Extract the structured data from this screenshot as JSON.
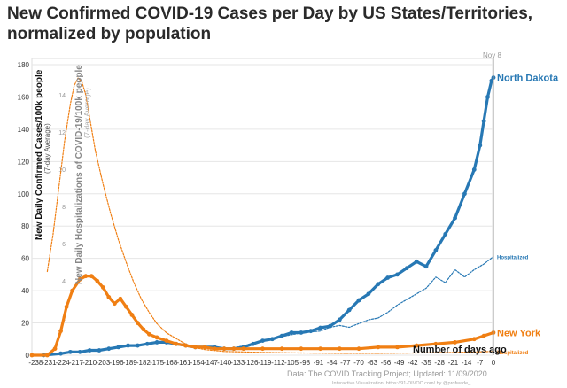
{
  "chart_data": {
    "type": "line",
    "title": "New Confirmed COVID-19 Cases per Day by US States/Territories, normalized by population",
    "ylabel": "New Daily Confirmed Cases/100k people",
    "ylabel_sub": "(7-day Average)",
    "y2label": "New Daily Hospitalizations of COVID-19/100k people",
    "y2label_sub": "(7-day Average)",
    "xlabel": "Number of days ago",
    "date_marker": "Nov 8",
    "source": "Data: The COVID Tracking Project; Updated: 11/09/2020",
    "credit": "Interactive Visualization: https://91-DIVOC.com/ by @profwade_",
    "xlim": [
      -240,
      0
    ],
    "ylim": [
      0,
      180
    ],
    "y2lim": [
      0,
      15
    ],
    "x_ticks": [
      -238,
      -231,
      -224,
      -217,
      -210,
      -203,
      -196,
      -189,
      -182,
      -175,
      -168,
      -161,
      -154,
      -147,
      -140,
      -133,
      -126,
      -119,
      -112,
      -105,
      -98,
      -91,
      -84,
      -77,
      -70,
      -63,
      -56,
      -49,
      -42,
      -35,
      -28,
      -21,
      -14,
      -7,
      0
    ],
    "y_ticks": [
      0,
      20,
      40,
      60,
      80,
      100,
      120,
      140,
      160,
      180
    ],
    "y2_ticks": [
      0,
      2,
      4,
      6,
      8,
      10,
      12,
      14
    ],
    "series": [
      {
        "name": "North Dakota",
        "metric": "cases",
        "color": "#2778b4",
        "points": [
          [
            -234,
            0
          ],
          [
            -225,
            1
          ],
          [
            -220,
            2
          ],
          [
            -215,
            2
          ],
          [
            -210,
            3
          ],
          [
            -205,
            3
          ],
          [
            -200,
            4
          ],
          [
            -195,
            5
          ],
          [
            -190,
            6
          ],
          [
            -185,
            6
          ],
          [
            -180,
            7
          ],
          [
            -175,
            8
          ],
          [
            -170,
            8
          ],
          [
            -165,
            7
          ],
          [
            -160,
            6
          ],
          [
            -155,
            5
          ],
          [
            -150,
            5
          ],
          [
            -145,
            5
          ],
          [
            -140,
            4
          ],
          [
            -135,
            4
          ],
          [
            -130,
            5
          ],
          [
            -125,
            7
          ],
          [
            -120,
            9
          ],
          [
            -115,
            10
          ],
          [
            -110,
            12
          ],
          [
            -105,
            14
          ],
          [
            -100,
            14
          ],
          [
            -95,
            15
          ],
          [
            -90,
            17
          ],
          [
            -85,
            18
          ],
          [
            -80,
            22
          ],
          [
            -75,
            28
          ],
          [
            -70,
            34
          ],
          [
            -65,
            38
          ],
          [
            -60,
            44
          ],
          [
            -55,
            48
          ],
          [
            -50,
            50
          ],
          [
            -45,
            54
          ],
          [
            -40,
            58
          ],
          [
            -35,
            55
          ],
          [
            -30,
            65
          ],
          [
            -25,
            75
          ],
          [
            -20,
            85
          ],
          [
            -15,
            100
          ],
          [
            -10,
            115
          ],
          [
            -7,
            130
          ],
          [
            -5,
            145
          ],
          [
            -3,
            160
          ],
          [
            -1,
            170
          ],
          [
            0,
            172
          ]
        ]
      },
      {
        "name": "Hospitalized",
        "metric": "hospitalizations",
        "color": "#2778b4",
        "points": [
          [
            -140,
            0.3
          ],
          [
            -130,
            0.5
          ],
          [
            -120,
            0.8
          ],
          [
            -110,
            1.0
          ],
          [
            -100,
            1.2
          ],
          [
            -90,
            1.3
          ],
          [
            -85,
            1.5
          ],
          [
            -80,
            1.6
          ],
          [
            -75,
            1.5
          ],
          [
            -70,
            1.7
          ],
          [
            -65,
            1.9
          ],
          [
            -60,
            2.0
          ],
          [
            -55,
            2.3
          ],
          [
            -50,
            2.7
          ],
          [
            -45,
            3.0
          ],
          [
            -40,
            3.3
          ],
          [
            -35,
            3.6
          ],
          [
            -30,
            4.2
          ],
          [
            -25,
            3.9
          ],
          [
            -20,
            4.6
          ],
          [
            -15,
            4.2
          ],
          [
            -10,
            4.6
          ],
          [
            -5,
            4.9
          ],
          [
            0,
            5.3
          ]
        ]
      },
      {
        "name": "New York",
        "metric": "cases",
        "color": "#f07f13",
        "points": [
          [
            -240,
            0
          ],
          [
            -232,
            0
          ],
          [
            -228,
            4
          ],
          [
            -225,
            15
          ],
          [
            -222,
            30
          ],
          [
            -219,
            40
          ],
          [
            -215,
            47
          ],
          [
            -212,
            49
          ],
          [
            -209,
            49
          ],
          [
            -206,
            46
          ],
          [
            -203,
            42
          ],
          [
            -200,
            36
          ],
          [
            -197,
            32
          ],
          [
            -194,
            35
          ],
          [
            -191,
            30
          ],
          [
            -188,
            25
          ],
          [
            -185,
            20
          ],
          [
            -182,
            16
          ],
          [
            -179,
            13
          ],
          [
            -175,
            11
          ],
          [
            -170,
            9
          ],
          [
            -165,
            7
          ],
          [
            -160,
            6
          ],
          [
            -155,
            5
          ],
          [
            -150,
            5
          ],
          [
            -145,
            4
          ],
          [
            -140,
            4
          ],
          [
            -135,
            4
          ],
          [
            -130,
            4
          ],
          [
            -120,
            4
          ],
          [
            -110,
            4
          ],
          [
            -100,
            4
          ],
          [
            -90,
            4
          ],
          [
            -80,
            4
          ],
          [
            -70,
            4
          ],
          [
            -60,
            5
          ],
          [
            -50,
            5
          ],
          [
            -40,
            6
          ],
          [
            -30,
            7
          ],
          [
            -20,
            8
          ],
          [
            -10,
            10
          ],
          [
            -5,
            12
          ],
          [
            0,
            14
          ]
        ]
      },
      {
        "name": "Hospitalized",
        "metric": "hospitalizations",
        "color": "#f07f13",
        "points": [
          [
            -232,
            4.5
          ],
          [
            -229,
            6.5
          ],
          [
            -226,
            9
          ],
          [
            -223,
            11.5
          ],
          [
            -220,
            13.5
          ],
          [
            -218,
            14.5
          ],
          [
            -216,
            14.9
          ],
          [
            -214,
            14.7
          ],
          [
            -212,
            14
          ],
          [
            -210,
            12.8
          ],
          [
            -207,
            11
          ],
          [
            -203,
            9.2
          ],
          [
            -199,
            7.6
          ],
          [
            -195,
            6.2
          ],
          [
            -191,
            5.0
          ],
          [
            -187,
            3.9
          ],
          [
            -183,
            3.0
          ],
          [
            -179,
            2.3
          ],
          [
            -175,
            1.7
          ],
          [
            -170,
            1.2
          ],
          [
            -165,
            0.9
          ],
          [
            -160,
            0.6
          ],
          [
            -155,
            0.4
          ],
          [
            -150,
            0.3
          ],
          [
            -140,
            0.2
          ],
          [
            -120,
            0.15
          ],
          [
            -100,
            0.12
          ],
          [
            -80,
            0.1
          ],
          [
            -60,
            0.1
          ],
          [
            -40,
            0.12
          ],
          [
            -20,
            0.15
          ],
          [
            0,
            0.2
          ]
        ]
      }
    ]
  }
}
